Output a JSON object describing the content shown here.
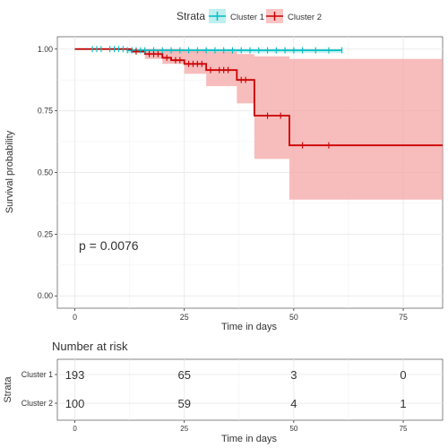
{
  "legend": {
    "title": "Strata",
    "entries": [
      {
        "label": "Cluster 1",
        "color": "#00BFC4"
      },
      {
        "label": "Cluster 2",
        "color": "#CC0000"
      }
    ]
  },
  "chart_data": [
    {
      "type": "line",
      "subtype": "kaplan-meier",
      "xlabel": "Time in days",
      "ylabel": "Survival probability",
      "xlim": [
        -4,
        84
      ],
      "ylim": [
        -0.05,
        1.05
      ],
      "xticks": [
        0,
        25,
        50,
        75
      ],
      "xtick_labels": [
        "0",
        "25",
        "50",
        "75"
      ],
      "yticks": [
        0,
        0.25,
        0.5,
        0.75,
        1.0
      ],
      "ytick_labels": [
        "0.00",
        "0.25",
        "0.50",
        "0.75",
        "1.00"
      ],
      "annotation": "p = 0.0076",
      "grid": true,
      "legend_position": "top",
      "series": [
        {
          "name": "Cluster 1",
          "color": "#00BFC4",
          "steps": [
            [
              0,
              1.0
            ],
            [
              12,
              1.0
            ],
            [
              12,
              0.995
            ],
            [
              61,
              0.995
            ]
          ],
          "ci_band": [
            [
              12,
              1.0,
              0.985
            ],
            [
              61,
              1.0,
              0.98
            ]
          ],
          "censor_times": [
            4,
            5,
            6,
            8,
            9,
            10,
            11,
            12,
            13,
            14,
            15,
            16,
            18,
            20,
            22,
            24,
            26,
            28,
            30,
            32,
            34,
            36,
            38,
            40,
            42,
            44,
            46,
            48,
            50,
            52,
            55,
            58,
            61
          ]
        },
        {
          "name": "Cluster 2",
          "color": "#CC0000",
          "band_color": "#F4A6A6",
          "steps": [
            [
              0,
              1.0
            ],
            [
              13,
              1.0
            ],
            [
              13,
              0.99
            ],
            [
              16,
              0.99
            ],
            [
              16,
              0.98
            ],
            [
              20,
              0.98
            ],
            [
              20,
              0.965
            ],
            [
              22,
              0.965
            ],
            [
              22,
              0.955
            ],
            [
              25,
              0.955
            ],
            [
              25,
              0.94
            ],
            [
              30,
              0.94
            ],
            [
              30,
              0.915
            ],
            [
              37,
              0.915
            ],
            [
              37,
              0.875
            ],
            [
              41,
              0.875
            ],
            [
              41,
              0.73
            ],
            [
              49,
              0.73
            ],
            [
              49,
              0.61
            ],
            [
              84,
              0.61
            ]
          ],
          "ci_band": [
            [
              0,
              1.0,
              1.0
            ],
            [
              13,
              1.0,
              0.985
            ],
            [
              16,
              1.0,
              0.96
            ],
            [
              20,
              1.0,
              0.94
            ],
            [
              25,
              0.995,
              0.9
            ],
            [
              30,
              0.99,
              0.85
            ],
            [
              37,
              0.98,
              0.78
            ],
            [
              41,
              0.97,
              0.555
            ],
            [
              49,
              0.96,
              0.39
            ],
            [
              84,
              0.96,
              0.39
            ]
          ],
          "censor_times": [
            14,
            17,
            18,
            19,
            21,
            23,
            24,
            26,
            27,
            28,
            29,
            31,
            33,
            34,
            35,
            38,
            39,
            44,
            47,
            52,
            58
          ]
        }
      ]
    },
    {
      "type": "table",
      "title": "Number at risk",
      "xlabel": "Time in days",
      "ylabel": "Strata",
      "xticks": [
        0,
        25,
        50,
        75
      ],
      "xtick_labels": [
        "0",
        "25",
        "50",
        "75"
      ],
      "xlim": [
        -4,
        84
      ],
      "rows": [
        {
          "name": "Cluster 1",
          "color": "#00BFC4",
          "values": [
            193,
            65,
            3,
            0
          ]
        },
        {
          "name": "Cluster 2",
          "color": "#CC0000",
          "values": [
            100,
            59,
            4,
            1
          ]
        }
      ]
    }
  ]
}
